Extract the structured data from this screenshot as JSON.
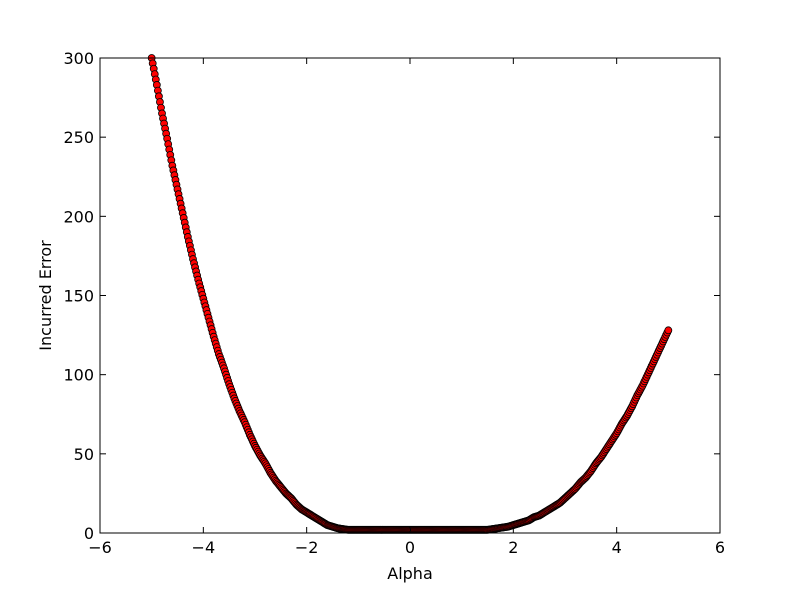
{
  "chart_data": {
    "type": "scatter",
    "title": "",
    "xlabel": "Alpha",
    "ylabel": "Incurred Error",
    "xlim": [
      -6,
      6
    ],
    "ylim": [
      0,
      300
    ],
    "xticks": [
      -6,
      -4,
      -2,
      0,
      2,
      4,
      6
    ],
    "yticks": [
      0,
      50,
      100,
      150,
      200,
      250,
      300
    ],
    "xtick_labels": [
      "−6",
      "−4",
      "−2",
      "0",
      "2",
      "4",
      "6"
    ],
    "ytick_labels": [
      "0",
      "50",
      "100",
      "150",
      "200",
      "250",
      "300"
    ],
    "grid": false,
    "marker_color": "#ff0000",
    "marker_edge_color": "#000000",
    "series": [
      {
        "x": [
          -5.0,
          -4.9,
          -4.8,
          -4.7,
          -4.6,
          -4.5,
          -4.4,
          -4.3,
          -4.2,
          -4.1,
          -4.0,
          -3.9,
          -3.8,
          -3.7,
          -3.6,
          -3.5,
          -3.4,
          -3.3,
          -3.2,
          -3.1,
          -3.0,
          -2.9,
          -2.8,
          -2.7,
          -2.6,
          -2.5,
          -2.4,
          -2.3,
          -2.2,
          -2.1,
          -2.0,
          -1.9,
          -1.8,
          -1.7,
          -1.6,
          -1.5,
          -1.4,
          -1.3,
          -1.2,
          -1.1,
          -1.0,
          -0.9,
          -0.8,
          -0.7,
          -0.6,
          -0.5,
          -0.4,
          -0.3,
          -0.2,
          -0.1,
          0.0,
          0.1,
          0.2,
          0.3,
          0.4,
          0.5,
          0.6,
          0.7,
          0.8,
          0.9,
          1.0,
          1.1,
          1.2,
          1.3,
          1.4,
          1.5,
          1.6,
          1.7,
          1.8,
          1.9,
          2.0,
          2.1,
          2.2,
          2.3,
          2.4,
          2.5,
          2.6,
          2.7,
          2.8,
          2.9,
          3.0,
          3.1,
          3.2,
          3.3,
          3.4,
          3.5,
          3.6,
          3.7,
          3.8,
          3.9,
          4.0,
          4.1,
          4.2,
          4.3,
          4.4,
          4.5,
          4.6,
          4.7,
          4.8,
          4.9,
          5.0
        ],
        "y": [
          300,
          283,
          265,
          249,
          232,
          217,
          202,
          187,
          173,
          160,
          148,
          136,
          124,
          113,
          104,
          94,
          85,
          77,
          70,
          62,
          55,
          49,
          44,
          38,
          33,
          29,
          25,
          22,
          18,
          15,
          13,
          11,
          9,
          7,
          5,
          4,
          3,
          2.5,
          2,
          2,
          2,
          2,
          2,
          2,
          2,
          2,
          2,
          2,
          2,
          2,
          2,
          2,
          2,
          2,
          2,
          2,
          2,
          2,
          2,
          2,
          2,
          2,
          2,
          2,
          2,
          2,
          2.5,
          3,
          3.5,
          4,
          5,
          6,
          7,
          8,
          10,
          11,
          13,
          15,
          17,
          19,
          22,
          25,
          28,
          32,
          35,
          39,
          44,
          48,
          53,
          58,
          63,
          69,
          74,
          80,
          87,
          93,
          100,
          107,
          114,
          121,
          128
        ]
      }
    ]
  }
}
